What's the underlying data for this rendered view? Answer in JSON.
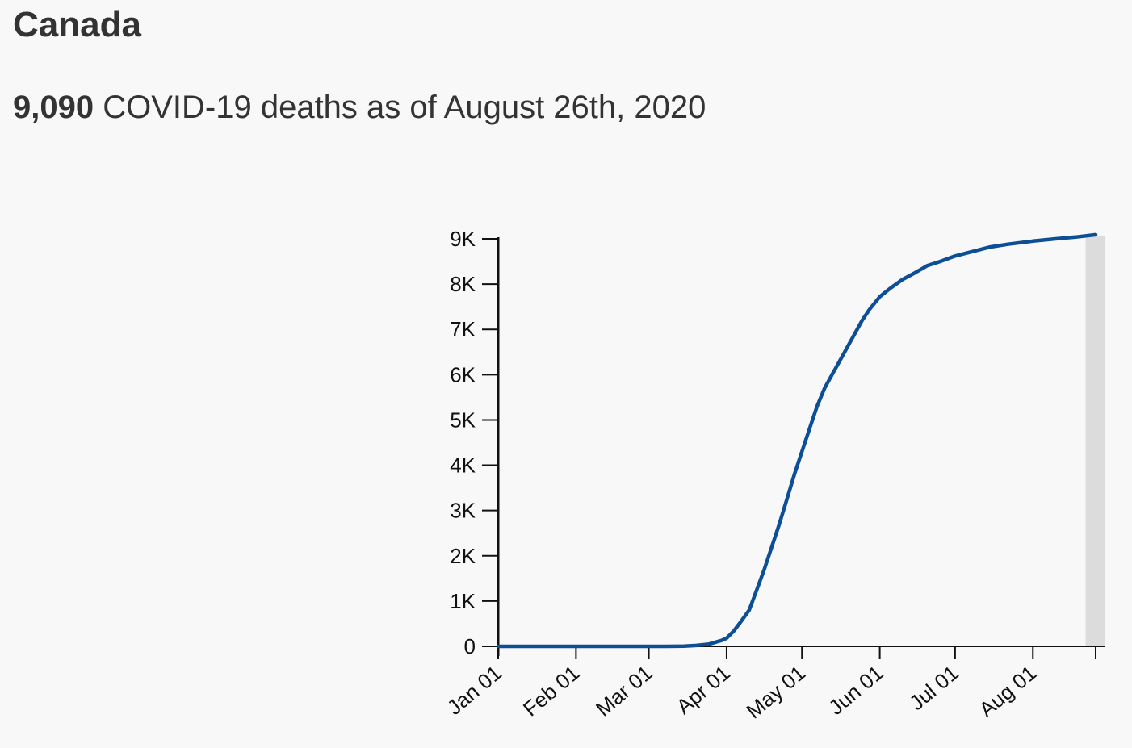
{
  "header": {
    "title": "Canada",
    "count": "9,090",
    "subtitle_rest": " COVID-19 deaths as of August 26th, 2020"
  },
  "colors": {
    "line": "#0d4f97",
    "axis": "#111111",
    "highlight": "#dcdcdc",
    "background": "#f8f8f8"
  },
  "chart_data": {
    "type": "line",
    "title": "",
    "xlabel": "",
    "ylabel": "",
    "ylim": [
      0,
      9000
    ],
    "xlim": [
      "2020-01-01",
      "2020-08-26"
    ],
    "grid": false,
    "y_ticks": [
      {
        "value": 0,
        "label": "0"
      },
      {
        "value": 1000,
        "label": "1K"
      },
      {
        "value": 2000,
        "label": "2K"
      },
      {
        "value": 3000,
        "label": "3K"
      },
      {
        "value": 4000,
        "label": "4K"
      },
      {
        "value": 5000,
        "label": "5K"
      },
      {
        "value": 6000,
        "label": "6K"
      },
      {
        "value": 7000,
        "label": "7K"
      },
      {
        "value": 8000,
        "label": "8K"
      },
      {
        "value": 9000,
        "label": "9K"
      }
    ],
    "x_ticks": [
      {
        "date": "2020-01-01",
        "label": "Jan 01"
      },
      {
        "date": "2020-02-01",
        "label": "Feb 01"
      },
      {
        "date": "2020-03-01",
        "label": "Mar 01"
      },
      {
        "date": "2020-04-01",
        "label": "Apr 01"
      },
      {
        "date": "2020-05-01",
        "label": "May 01"
      },
      {
        "date": "2020-06-01",
        "label": "Jun 01"
      },
      {
        "date": "2020-07-01",
        "label": "Jul 01"
      },
      {
        "date": "2020-08-01",
        "label": "Aug 01"
      }
    ],
    "highlight_range": [
      "2020-08-22",
      "2020-08-26"
    ],
    "series": [
      {
        "points": [
          {
            "x": "2020-01-01",
            "y": 0
          },
          {
            "x": "2020-03-08",
            "y": 0
          },
          {
            "x": "2020-03-15",
            "y": 5
          },
          {
            "x": "2020-03-20",
            "y": 20
          },
          {
            "x": "2020-03-25",
            "y": 50
          },
          {
            "x": "2020-03-30",
            "y": 130
          },
          {
            "x": "2020-04-01",
            "y": 180
          },
          {
            "x": "2020-04-04",
            "y": 350
          },
          {
            "x": "2020-04-07",
            "y": 570
          },
          {
            "x": "2020-04-10",
            "y": 800
          },
          {
            "x": "2020-04-13",
            "y": 1250
          },
          {
            "x": "2020-04-16",
            "y": 1700
          },
          {
            "x": "2020-04-19",
            "y": 2200
          },
          {
            "x": "2020-04-22",
            "y": 2700
          },
          {
            "x": "2020-04-25",
            "y": 3250
          },
          {
            "x": "2020-04-28",
            "y": 3800
          },
          {
            "x": "2020-05-01",
            "y": 4300
          },
          {
            "x": "2020-05-04",
            "y": 4800
          },
          {
            "x": "2020-05-07",
            "y": 5300
          },
          {
            "x": "2020-05-10",
            "y": 5700
          },
          {
            "x": "2020-05-13",
            "y": 6000
          },
          {
            "x": "2020-05-16",
            "y": 6300
          },
          {
            "x": "2020-05-19",
            "y": 6600
          },
          {
            "x": "2020-05-22",
            "y": 6900
          },
          {
            "x": "2020-05-25",
            "y": 7200
          },
          {
            "x": "2020-05-28",
            "y": 7450
          },
          {
            "x": "2020-06-01",
            "y": 7720
          },
          {
            "x": "2020-06-05",
            "y": 7900
          },
          {
            "x": "2020-06-10",
            "y": 8100
          },
          {
            "x": "2020-06-15",
            "y": 8250
          },
          {
            "x": "2020-06-20",
            "y": 8410
          },
          {
            "x": "2020-06-25",
            "y": 8500
          },
          {
            "x": "2020-07-01",
            "y": 8620
          },
          {
            "x": "2020-07-08",
            "y": 8720
          },
          {
            "x": "2020-07-15",
            "y": 8820
          },
          {
            "x": "2020-07-22",
            "y": 8880
          },
          {
            "x": "2020-08-01",
            "y": 8950
          },
          {
            "x": "2020-08-10",
            "y": 9000
          },
          {
            "x": "2020-08-18",
            "y": 9040
          },
          {
            "x": "2020-08-26",
            "y": 9090
          }
        ]
      }
    ]
  }
}
